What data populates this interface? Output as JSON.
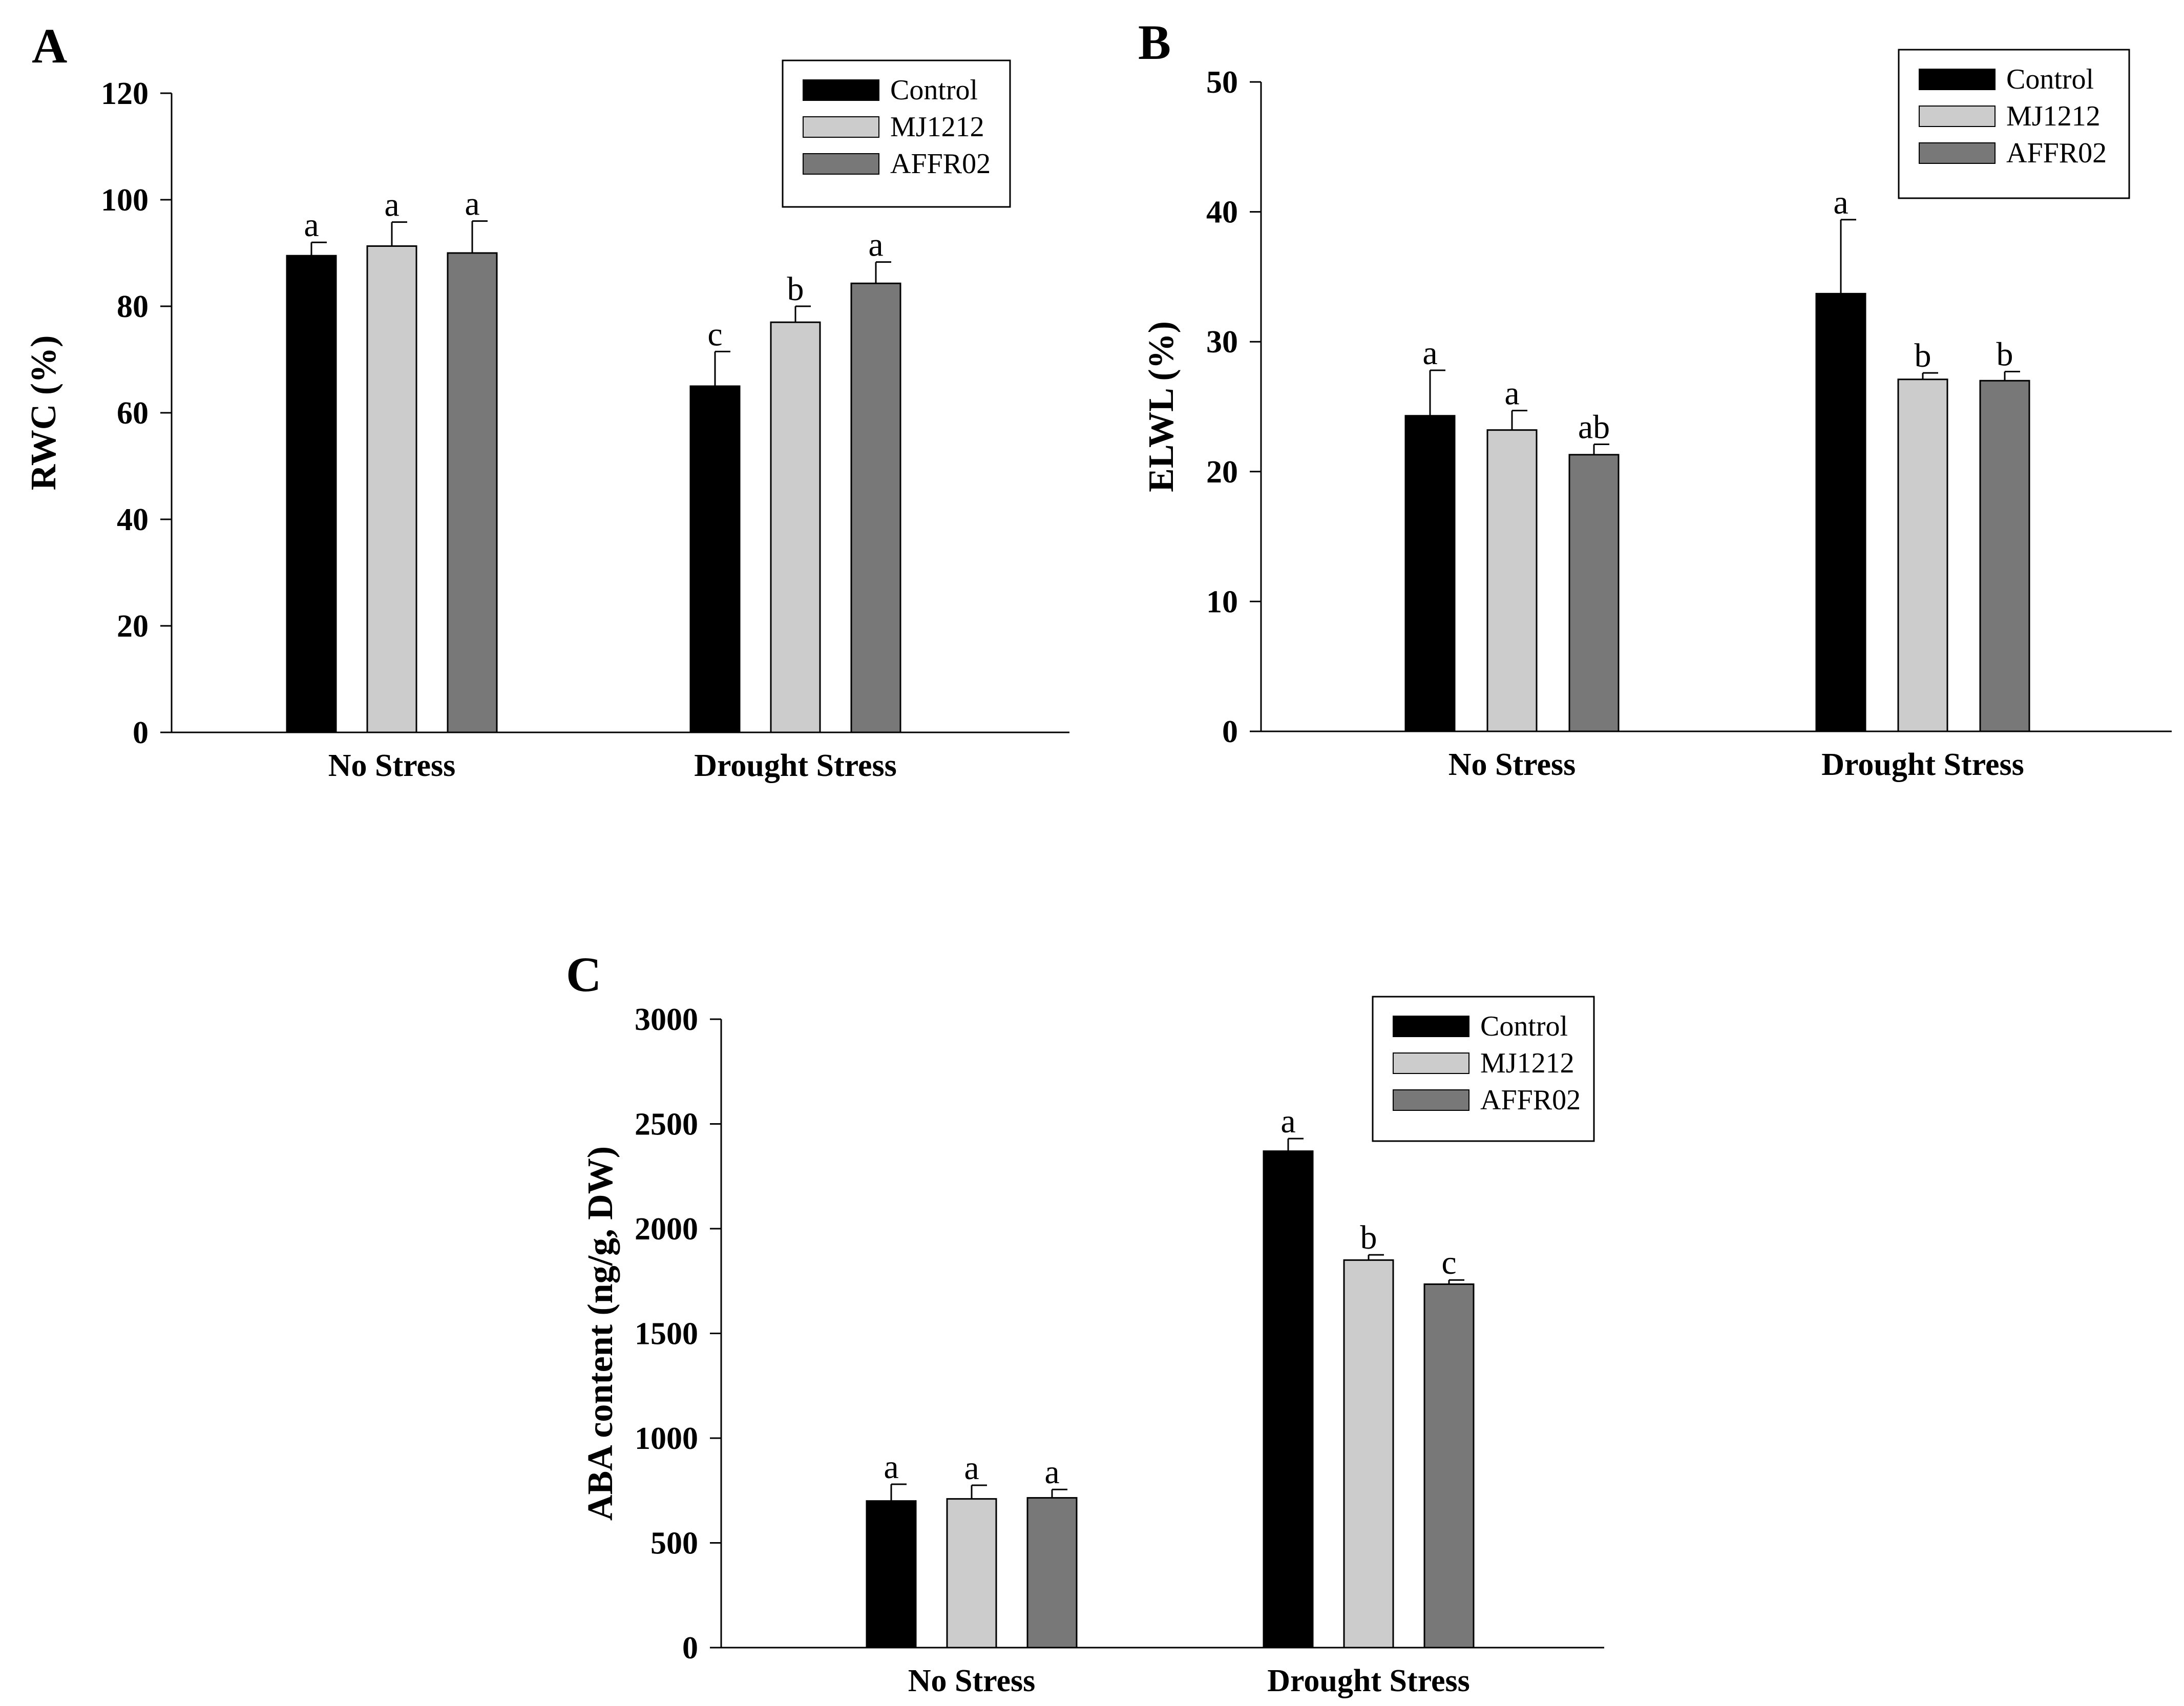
{
  "chart_data": [
    {
      "type": "bar",
      "panel_label": "A",
      "ylabel": "RWC (%)",
      "xlabel": "",
      "ylim": [
        0,
        120
      ],
      "yticks": [
        0,
        20,
        40,
        60,
        80,
        100,
        120
      ],
      "ytick_labels": [
        "0",
        "20",
        "40",
        "60",
        "80",
        "100",
        "120"
      ],
      "categories": [
        "No Stress",
        "Drought Stress"
      ],
      "legend": {
        "position": "top-right",
        "entries": [
          "Control",
          "MJ1212",
          "AFFR02"
        ]
      },
      "series": [
        {
          "name": "Control",
          "color": "#000000",
          "values": [
            89.5,
            65.0
          ],
          "errors": [
            2.5,
            6.5
          ],
          "labels": [
            "a",
            "c"
          ]
        },
        {
          "name": "MJ1212",
          "color": "#cccccc",
          "values": [
            91.3,
            77.0
          ],
          "errors": [
            4.5,
            3.0
          ],
          "labels": [
            "a",
            "b"
          ]
        },
        {
          "name": "AFFR02",
          "color": "#787878",
          "values": [
            90.0,
            84.3
          ],
          "errors": [
            6.0,
            4.0
          ],
          "labels": [
            "a",
            "a"
          ]
        }
      ]
    },
    {
      "type": "bar",
      "panel_label": "B",
      "ylabel": "ELWL (%)",
      "xlabel": "",
      "ylim": [
        0,
        50
      ],
      "yticks": [
        0,
        10,
        20,
        30,
        40,
        50
      ],
      "ytick_labels": [
        "0",
        "10",
        "20",
        "30",
        "40",
        "50"
      ],
      "categories": [
        "No Stress",
        "Drought Stress"
      ],
      "legend": {
        "position": "top-right",
        "entries": [
          "Control",
          "MJ1212",
          "AFFR02"
        ]
      },
      "series": [
        {
          "name": "Control",
          "color": "#000000",
          "values": [
            24.3,
            33.7
          ],
          "errors": [
            3.5,
            5.7
          ],
          "labels": [
            "a",
            "a"
          ]
        },
        {
          "name": "MJ1212",
          "color": "#cccccc",
          "values": [
            23.2,
            27.1
          ],
          "errors": [
            1.5,
            0.5
          ],
          "labels": [
            "a",
            "b"
          ]
        },
        {
          "name": "AFFR02",
          "color": "#787878",
          "values": [
            21.3,
            27.0
          ],
          "errors": [
            0.8,
            0.7
          ],
          "labels": [
            "ab",
            "b"
          ]
        }
      ]
    },
    {
      "type": "bar",
      "panel_label": "C",
      "ylabel": "ABA content (ng/g, DW)",
      "xlabel": "",
      "ylim": [
        0,
        3000
      ],
      "yticks": [
        0,
        500,
        1000,
        1500,
        2000,
        2500,
        3000
      ],
      "ytick_labels": [
        "0",
        "500",
        "1000",
        "1500",
        "2000",
        "2500",
        "3000"
      ],
      "categories": [
        "No Stress",
        "Drought Stress"
      ],
      "legend": {
        "position": "top-right",
        "entries": [
          "Control",
          "MJ1212",
          "AFFR02"
        ]
      },
      "series": [
        {
          "name": "Control",
          "color": "#000000",
          "values": [
            700,
            2370
          ],
          "errors": [
            80,
            60
          ],
          "labels": [
            "a",
            "a"
          ]
        },
        {
          "name": "MJ1212",
          "color": "#cccccc",
          "values": [
            710,
            1850
          ],
          "errors": [
            65,
            25
          ],
          "labels": [
            "a",
            "b"
          ]
        },
        {
          "name": "AFFR02",
          "color": "#787878",
          "values": [
            715,
            1735
          ],
          "errors": [
            40,
            20
          ],
          "labels": [
            "a",
            "c"
          ]
        }
      ]
    }
  ]
}
